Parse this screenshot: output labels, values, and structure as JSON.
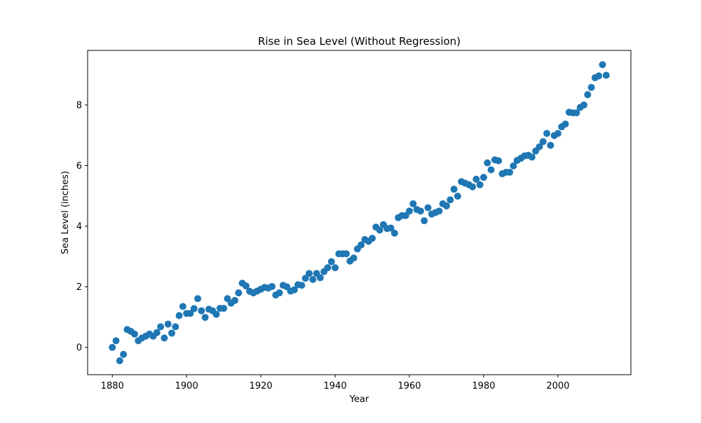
{
  "chart_data": {
    "type": "scatter",
    "title": "Rise in Sea Level (Without Regression)",
    "xlabel": "Year",
    "ylabel": "Sea Level (inches)",
    "xlim": [
      1873.35,
      2019.65
    ],
    "ylim": [
      -0.9,
      9.8
    ],
    "xticks": [
      1880,
      1900,
      1920,
      1940,
      1960,
      1980,
      2000
    ],
    "yticks": [
      0,
      2,
      4,
      6,
      8
    ],
    "grid": false,
    "marker_color": "#1f77b4",
    "x": [
      1880,
      1881,
      1882,
      1883,
      1884,
      1885,
      1886,
      1887,
      1888,
      1889,
      1890,
      1891,
      1892,
      1893,
      1894,
      1895,
      1896,
      1897,
      1898,
      1899,
      1900,
      1901,
      1902,
      1903,
      1904,
      1905,
      1906,
      1907,
      1908,
      1909,
      1910,
      1911,
      1912,
      1913,
      1914,
      1915,
      1916,
      1917,
      1918,
      1919,
      1920,
      1921,
      1922,
      1923,
      1924,
      1925,
      1926,
      1927,
      1928,
      1929,
      1930,
      1931,
      1932,
      1933,
      1934,
      1935,
      1936,
      1937,
      1938,
      1939,
      1940,
      1941,
      1942,
      1943,
      1944,
      1945,
      1946,
      1947,
      1948,
      1949,
      1950,
      1951,
      1952,
      1953,
      1954,
      1955,
      1956,
      1957,
      1958,
      1959,
      1960,
      1961,
      1962,
      1963,
      1964,
      1965,
      1966,
      1967,
      1968,
      1969,
      1970,
      1971,
      1972,
      1973,
      1974,
      1975,
      1976,
      1977,
      1978,
      1979,
      1980,
      1981,
      1982,
      1983,
      1984,
      1985,
      1986,
      1987,
      1988,
      1989,
      1990,
      1991,
      1992,
      1993,
      1994,
      1995,
      1996,
      1997,
      1998,
      1999,
      2000,
      2001,
      2002,
      2003,
      2004,
      2005,
      2006,
      2007,
      2008,
      2009,
      2010,
      2011,
      2012,
      2013
    ],
    "y": [
      0.0,
      0.22,
      -0.44,
      -0.23,
      0.59,
      0.53,
      0.44,
      0.22,
      0.31,
      0.37,
      0.44,
      0.37,
      0.49,
      0.68,
      0.31,
      0.77,
      0.47,
      0.68,
      1.05,
      1.35,
      1.12,
      1.12,
      1.28,
      1.61,
      1.21,
      0.99,
      1.26,
      1.21,
      1.09,
      1.29,
      1.29,
      1.61,
      1.46,
      1.55,
      1.8,
      2.12,
      2.03,
      1.85,
      1.8,
      1.86,
      1.92,
      1.98,
      1.96,
      2.01,
      1.73,
      1.8,
      2.05,
      2.0,
      1.86,
      1.9,
      2.07,
      2.05,
      2.28,
      2.44,
      2.24,
      2.44,
      2.3,
      2.5,
      2.63,
      2.83,
      2.63,
      3.09,
      3.09,
      3.09,
      2.85,
      2.95,
      3.25,
      3.38,
      3.56,
      3.5,
      3.6,
      3.97,
      3.87,
      4.05,
      3.92,
      3.94,
      3.77,
      4.28,
      4.35,
      4.35,
      4.5,
      4.74,
      4.55,
      4.5,
      4.18,
      4.61,
      4.4,
      4.45,
      4.5,
      4.74,
      4.67,
      4.87,
      5.22,
      4.99,
      5.47,
      5.42,
      5.37,
      5.3,
      5.55,
      5.37,
      5.61,
      6.09,
      5.86,
      6.19,
      6.16,
      5.73,
      5.78,
      5.78,
      5.99,
      6.17,
      6.24,
      6.32,
      6.34,
      6.28,
      6.48,
      6.62,
      6.79,
      7.06,
      6.67,
      6.99,
      7.06,
      7.28,
      7.37,
      7.76,
      7.74,
      7.74,
      7.92,
      8.0,
      8.34,
      8.58,
      8.9,
      8.96,
      9.33,
      8.98
    ]
  }
}
